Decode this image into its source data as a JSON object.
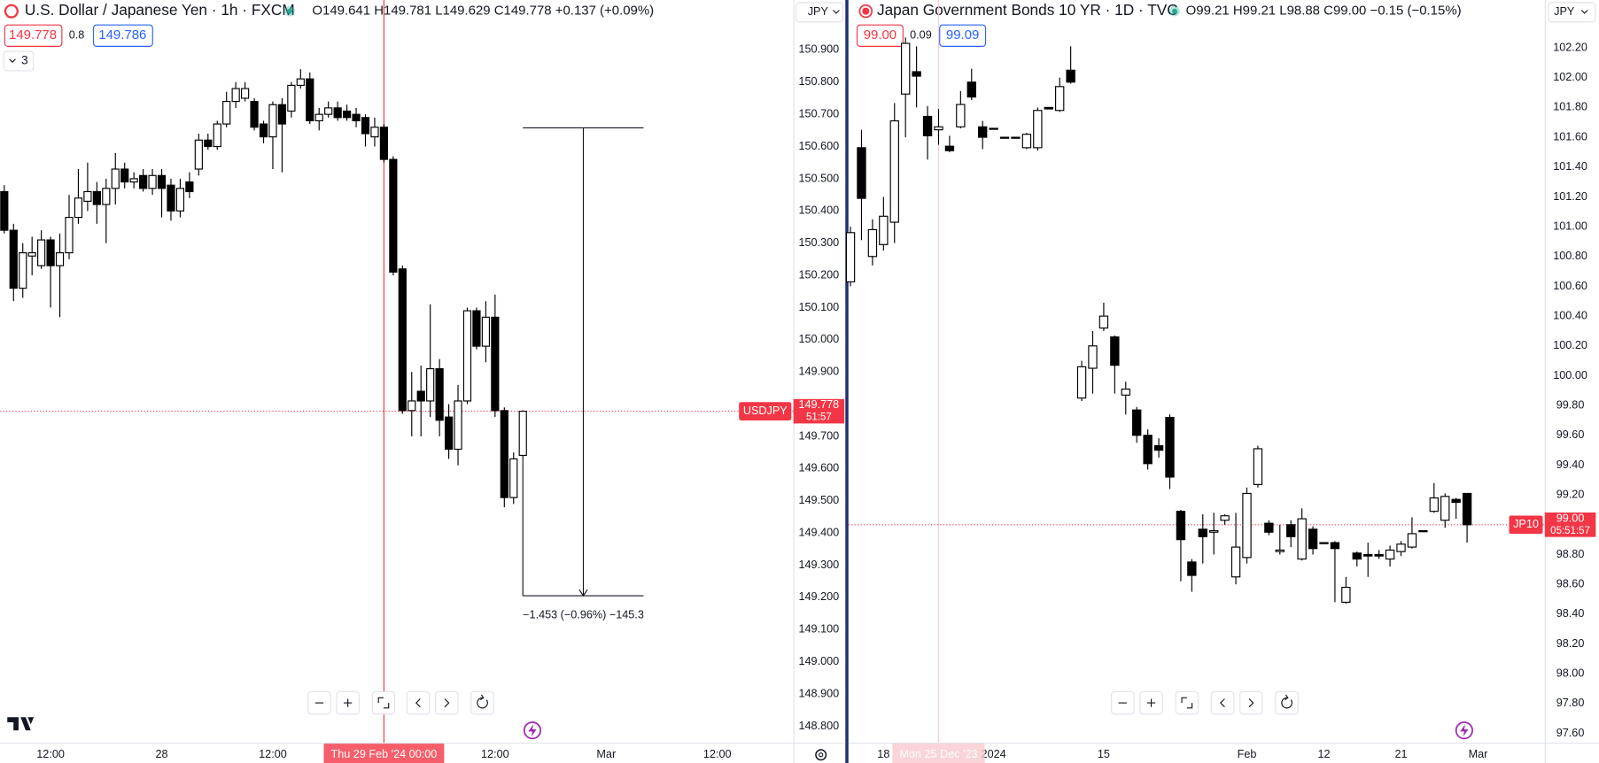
{
  "chart_data": [
    {
      "type": "candlestick",
      "title": "U.S. Dollar / Japanese Yen · 1h · FXCM",
      "ohlc_label": "O149.641 H149.781 L149.629 C149.778 +0.137 (+0.09%)",
      "bid": "149.778",
      "spread": "0.8",
      "ask": "149.786",
      "indicators": "3",
      "currency": "JPY",
      "categories": [
        null,
        null,
        null,
        null,
        null,
        "12:00",
        null,
        null,
        null,
        null,
        null,
        null,
        null,
        null,
        null,
        null,
        null,
        "28",
        null,
        null,
        null,
        null,
        null,
        null,
        null,
        null,
        null,
        null,
        null,
        "12:00",
        null,
        null,
        null,
        null,
        null,
        null,
        null,
        null,
        null,
        null,
        null,
        "Thu 29 Feb '24 00:00",
        null,
        null,
        null,
        null,
        null,
        null,
        null,
        null,
        null,
        null,
        null,
        "12:00",
        null,
        null,
        null,
        null,
        null,
        null,
        null,
        null,
        null,
        null,
        null,
        "Mar",
        null,
        null,
        null,
        null,
        null,
        null,
        null,
        null,
        null,
        null,
        null,
        "12:00",
        null,
        null,
        null,
        null,
        null,
        null,
        null,
        null
      ],
      "open": [
        150.46,
        150.34,
        150.16,
        150.26,
        150.23,
        150.31,
        150.23,
        150.27,
        150.38,
        150.43,
        150.46,
        150.42,
        150.47,
        150.53,
        150.49,
        150.51,
        150.47,
        150.51,
        150.48,
        150.4,
        150.49,
        150.53,
        150.62,
        150.6,
        150.67,
        150.74,
        150.75,
        150.74,
        150.67,
        150.63,
        150.73,
        150.71,
        150.79,
        150.81,
        150.68,
        150.7,
        150.72,
        150.71,
        150.7,
        150.69,
        150.63,
        150.66,
        150.56,
        150.22,
        149.78,
        149.84,
        149.81,
        149.91,
        149.76,
        149.66,
        149.81,
        150.09,
        149.98,
        150.07,
        149.78,
        149.51,
        149.641,
        null,
        null,
        null,
        null,
        null,
        null,
        null,
        null,
        null,
        null,
        null,
        null,
        null,
        null,
        null,
        null,
        null,
        null,
        null,
        null,
        null,
        null,
        null,
        null,
        null,
        null,
        null,
        null,
        null
      ],
      "high": [
        150.48,
        150.36,
        150.3,
        150.32,
        150.34,
        150.32,
        150.33,
        150.45,
        150.53,
        150.55,
        150.49,
        150.5,
        150.58,
        150.55,
        150.52,
        150.53,
        150.53,
        150.53,
        150.5,
        150.5,
        150.52,
        150.64,
        150.64,
        150.68,
        150.77,
        150.8,
        150.8,
        150.75,
        150.68,
        150.74,
        150.75,
        150.8,
        150.84,
        150.83,
        150.72,
        150.74,
        150.74,
        150.73,
        150.72,
        150.7,
        150.69,
        150.67,
        150.57,
        150.23,
        149.9,
        149.92,
        150.11,
        149.94,
        149.8,
        149.86,
        150.1,
        150.1,
        150.12,
        150.14,
        149.79,
        149.65,
        149.781,
        null,
        null,
        null,
        null,
        null,
        null,
        null,
        null,
        null,
        null,
        null,
        null,
        null,
        null,
        null,
        null,
        null,
        null,
        null,
        null,
        null,
        null,
        null,
        null,
        null,
        null,
        null,
        null,
        null
      ],
      "low": [
        150.33,
        150.12,
        150.13,
        150.2,
        150.22,
        150.1,
        150.07,
        150.25,
        150.36,
        150.4,
        150.36,
        150.3,
        150.42,
        150.47,
        150.47,
        150.46,
        150.45,
        150.38,
        150.37,
        150.38,
        150.44,
        150.51,
        150.59,
        150.59,
        150.66,
        150.72,
        150.74,
        150.65,
        150.61,
        150.53,
        150.52,
        150.69,
        150.78,
        150.67,
        150.65,
        150.69,
        150.68,
        150.68,
        150.66,
        150.6,
        150.6,
        150.55,
        150.2,
        149.77,
        149.7,
        149.7,
        149.76,
        149.7,
        149.63,
        149.61,
        149.8,
        149.97,
        149.93,
        149.76,
        149.48,
        149.49,
        149.629,
        null,
        null,
        null,
        null,
        null,
        null,
        null,
        null,
        null,
        null,
        null,
        null,
        null,
        null,
        null,
        null,
        null,
        null,
        null,
        null,
        null,
        null,
        null,
        null,
        null,
        null,
        null,
        null,
        null
      ],
      "close": [
        150.34,
        150.16,
        150.27,
        150.27,
        150.31,
        150.23,
        150.27,
        150.38,
        150.44,
        150.46,
        150.42,
        150.47,
        150.53,
        150.49,
        150.5,
        150.47,
        150.51,
        150.47,
        150.4,
        150.47,
        150.46,
        150.62,
        150.6,
        150.67,
        150.74,
        150.78,
        150.78,
        150.66,
        150.63,
        150.73,
        150.67,
        150.79,
        150.81,
        150.68,
        150.7,
        150.72,
        150.69,
        150.69,
        150.68,
        150.64,
        150.66,
        150.56,
        150.21,
        149.78,
        149.81,
        149.81,
        149.91,
        149.75,
        149.66,
        149.81,
        150.09,
        149.98,
        150.07,
        149.78,
        149.51,
        149.63,
        149.778,
        null,
        null,
        null,
        null,
        null,
        null,
        null,
        null,
        null,
        null,
        null,
        null,
        null,
        null,
        null,
        null,
        null,
        null,
        null,
        null,
        null,
        null,
        null,
        null,
        null,
        null,
        null,
        null,
        null
      ],
      "ylim": [
        148.749,
        151.055
      ],
      "yticks": [
        {
          "value": 150.9,
          "label": "150.900"
        },
        {
          "value": 150.8,
          "label": "150.800"
        },
        {
          "value": 150.7,
          "label": "150.700"
        },
        {
          "value": 150.6,
          "label": "150.600"
        },
        {
          "value": 150.5,
          "label": "150.500"
        },
        {
          "value": 150.4,
          "label": "150.400"
        },
        {
          "value": 150.3,
          "label": "150.300"
        },
        {
          "value": 150.2,
          "label": "150.200"
        },
        {
          "value": 150.1,
          "label": "150.100"
        },
        {
          "value": 150.0,
          "label": "150.000"
        },
        {
          "value": 149.9,
          "label": "149.900"
        },
        {
          "value": 149.8,
          "label": "149.800"
        },
        {
          "value": 149.7,
          "label": "149.700"
        },
        {
          "value": 149.6,
          "label": "149.600"
        },
        {
          "value": 149.5,
          "label": "149.500"
        },
        {
          "value": 149.4,
          "label": "149.400"
        },
        {
          "value": 149.3,
          "label": "149.300"
        },
        {
          "value": 149.2,
          "label": "149.200"
        },
        {
          "value": 149.1,
          "label": "149.100"
        },
        {
          "value": 149.0,
          "label": "149.000"
        },
        {
          "value": 148.9,
          "label": "148.900"
        },
        {
          "value": 148.8,
          "label": "148.800"
        }
      ],
      "up_color": "#ffffff",
      "down_color": "#000000",
      "edge_color": "#000000",
      "crosshair_category": 41,
      "crosshair_color": "#f23645",
      "price_label": {
        "symbol": "USDJPY",
        "value": 149.778,
        "label": "149.778",
        "countdown": "51:57",
        "color": "#f23645"
      },
      "measure": {
        "from": 150.658,
        "to": 149.205,
        "label": "−1.453 (−0.96%) −145.3"
      }
    },
    {
      "type": "candlestick",
      "title": "Japan Government Bonds 10 YR · 1D · TVC",
      "ohlc_label": "O99.21 H99.21 L98.88 C99.00 −0.15 (−0.15%)",
      "bid": "99.00",
      "spread": "0.09",
      "ask": "99.09",
      "currency": "JPY",
      "categories": [
        null,
        null,
        null,
        "18",
        null,
        null,
        null,
        null,
        "Mon 25 Dec '23",
        null,
        null,
        null,
        null,
        "2024",
        null,
        null,
        null,
        null,
        null,
        null,
        null,
        null,
        null,
        "15",
        null,
        null,
        null,
        null,
        null,
        null,
        null,
        null,
        null,
        null,
        null,
        null,
        "Feb",
        null,
        null,
        null,
        null,
        null,
        null,
        "12",
        null,
        null,
        null,
        null,
        null,
        null,
        "21",
        null,
        null,
        null,
        null,
        null,
        null,
        "Mar",
        null,
        null,
        null,
        null,
        null
      ],
      "open": [
        100.63,
        101.53,
        100.8,
        100.88,
        101.03,
        101.89,
        102.04,
        101.74,
        101.65,
        101.54,
        101.67,
        101.97,
        101.67,
        101.66,
        101.6,
        101.6,
        101.53,
        101.53,
        101.8,
        101.78,
        102.05,
        99.85,
        100.05,
        100.32,
        100.26,
        99.87,
        99.77,
        99.6,
        99.53,
        99.72,
        99.09,
        98.75,
        98.97,
        98.95,
        99.03,
        98.65,
        98.78,
        99.27,
        99.01,
        98.82,
        99.0,
        98.77,
        98.97,
        98.88,
        98.88,
        98.48,
        98.81,
        98.8,
        98.8,
        98.77,
        98.82,
        98.85,
        98.96,
        99.09,
        99.03,
        99.17,
        99.21,
        null,
        null,
        null,
        null,
        null,
        null
      ],
      "high": [
        101.0,
        101.65,
        101.05,
        101.2,
        101.83,
        102.27,
        102.21,
        101.81,
        101.79,
        101.61,
        101.91,
        102.06,
        101.71,
        101.66,
        101.6,
        101.6,
        101.63,
        101.8,
        101.8,
        102.0,
        102.21,
        100.1,
        100.3,
        100.49,
        100.27,
        99.96,
        99.79,
        99.64,
        99.58,
        99.74,
        99.1,
        98.77,
        99.07,
        99.08,
        99.07,
        99.08,
        99.25,
        99.53,
        99.03,
        99.0,
        99.03,
        99.11,
        98.99,
        98.88,
        98.89,
        98.65,
        98.82,
        98.88,
        98.83,
        98.86,
        98.89,
        99.05,
        98.96,
        99.28,
        99.21,
        99.18,
        99.21,
        null,
        null,
        null,
        null,
        null,
        null
      ],
      "low": [
        100.6,
        100.91,
        100.74,
        100.84,
        100.89,
        101.6,
        101.8,
        101.45,
        101.55,
        101.5,
        101.66,
        101.85,
        101.52,
        101.66,
        101.6,
        101.6,
        101.52,
        101.51,
        101.79,
        101.77,
        101.96,
        99.83,
        99.88,
        100.3,
        99.88,
        99.74,
        99.55,
        99.37,
        99.45,
        99.24,
        98.62,
        98.55,
        98.74,
        98.8,
        99.0,
        98.6,
        98.74,
        99.25,
        98.93,
        98.8,
        98.85,
        98.76,
        98.8,
        98.88,
        98.48,
        98.47,
        98.72,
        98.65,
        98.77,
        98.72,
        98.79,
        98.84,
        98.96,
        99.08,
        98.98,
        99.04,
        98.88,
        null,
        null,
        null,
        null,
        null,
        null
      ],
      "close": [
        100.96,
        101.19,
        100.98,
        101.07,
        101.71,
        102.23,
        102.01,
        101.61,
        101.67,
        101.51,
        101.82,
        101.87,
        101.6,
        101.66,
        101.6,
        101.6,
        101.62,
        101.78,
        101.79,
        101.94,
        101.97,
        100.06,
        100.2,
        100.4,
        100.07,
        99.91,
        99.6,
        99.41,
        99.5,
        99.32,
        98.9,
        98.66,
        98.92,
        98.96,
        99.06,
        98.85,
        99.21,
        99.51,
        98.95,
        98.83,
        98.92,
        99.04,
        98.84,
        98.88,
        98.84,
        98.58,
        98.77,
        98.79,
        98.79,
        98.83,
        98.87,
        98.94,
        98.96,
        99.18,
        99.19,
        99.15,
        99.0,
        null,
        null,
        null,
        null,
        null,
        null
      ],
      "ylim": [
        97.538,
        102.521
      ],
      "yticks": [
        {
          "value": 102.2,
          "label": "102.20"
        },
        {
          "value": 102.0,
          "label": "102.00"
        },
        {
          "value": 101.8,
          "label": "101.80"
        },
        {
          "value": 101.6,
          "label": "101.60"
        },
        {
          "value": 101.4,
          "label": "101.40"
        },
        {
          "value": 101.2,
          "label": "101.20"
        },
        {
          "value": 101.0,
          "label": "101.00"
        },
        {
          "value": 100.8,
          "label": "100.80"
        },
        {
          "value": 100.6,
          "label": "100.60"
        },
        {
          "value": 100.4,
          "label": "100.40"
        },
        {
          "value": 100.2,
          "label": "100.20"
        },
        {
          "value": 100.0,
          "label": "100.00"
        },
        {
          "value": 99.8,
          "label": "99.80"
        },
        {
          "value": 99.6,
          "label": "99.60"
        },
        {
          "value": 99.4,
          "label": "99.40"
        },
        {
          "value": 99.2,
          "label": "99.20"
        },
        {
          "value": 99.0,
          "label": "99.00"
        },
        {
          "value": 98.8,
          "label": "98.80"
        },
        {
          "value": 98.6,
          "label": "98.60"
        },
        {
          "value": 98.4,
          "label": "98.40"
        },
        {
          "value": 98.2,
          "label": "98.20"
        },
        {
          "value": 98.0,
          "label": "98.00"
        },
        {
          "value": 97.8,
          "label": "97.80"
        },
        {
          "value": 97.6,
          "label": "97.60"
        }
      ],
      "up_color": "#ffffff",
      "down_color": "#000000",
      "edge_color": "#000000",
      "crosshair_category": 8,
      "crosshair_color": "#f9c9ce",
      "price_label": {
        "symbol": "JP10",
        "value": 99.0,
        "label": "99.00",
        "countdown": "05:51:57",
        "color": "#f23645"
      }
    }
  ]
}
